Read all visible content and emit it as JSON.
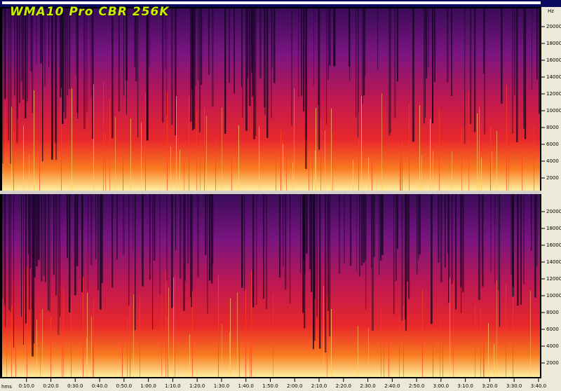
{
  "title": "WMA10 Pro CBR 256K",
  "frequency_axis": {
    "unit": "Hz",
    "ticks": [
      2000,
      4000,
      6000,
      8000,
      10000,
      12000,
      14000,
      16000,
      18000,
      20000
    ]
  },
  "time_axis": {
    "unit": "hms",
    "ticks": [
      {
        "value": 10,
        "label": "0:10.0"
      },
      {
        "value": 20,
        "label": "0:20.0"
      },
      {
        "value": 30,
        "label": "0:30.0"
      },
      {
        "value": 40,
        "label": "0:40.0"
      },
      {
        "value": 50,
        "label": "0:50.0"
      },
      {
        "value": 60,
        "label": "1:00.0"
      },
      {
        "value": 70,
        "label": "1:10.0"
      },
      {
        "value": 80,
        "label": "1:20.0"
      },
      {
        "value": 90,
        "label": "1:30.0"
      },
      {
        "value": 100,
        "label": "1:40.0"
      },
      {
        "value": 110,
        "label": "1:50.0"
      },
      {
        "value": 120,
        "label": "2:00.0"
      },
      {
        "value": 130,
        "label": "2:10.0"
      },
      {
        "value": 140,
        "label": "2:20.0"
      },
      {
        "value": 150,
        "label": "2:30.0"
      },
      {
        "value": 160,
        "label": "2:40.0"
      },
      {
        "value": 170,
        "label": "2:50.0"
      },
      {
        "value": 180,
        "label": "3:00.0"
      },
      {
        "value": 190,
        "label": "3:10.0"
      },
      {
        "value": 200,
        "label": "3:20.0"
      },
      {
        "value": 210,
        "label": "3:30.0"
      },
      {
        "value": 220,
        "label": "3:40.0"
      }
    ]
  }
}
